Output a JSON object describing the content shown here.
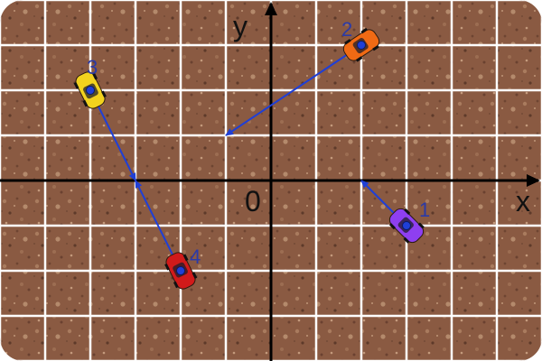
{
  "axes": {
    "x_label": "x",
    "y_label": "y",
    "origin_label": "0"
  },
  "grid": {
    "shown": true,
    "line_color": "#ffffff",
    "cell_units": 1,
    "x_range": [
      -6,
      6
    ],
    "y_range": [
      -4,
      4
    ]
  },
  "colors": {
    "ground": "#8a5a42",
    "axis": "#000000",
    "arrow": "#1f3fd6",
    "label": "#2a3aa8"
  },
  "cars": [
    {
      "label": "1",
      "color": "#8e3ff0",
      "position": [
        3,
        -1
      ],
      "arrow_to": [
        2,
        0
      ]
    },
    {
      "label": "2",
      "color": "#f06a14",
      "position": [
        2,
        3
      ],
      "arrow_to": [
        -1,
        1
      ]
    },
    {
      "label": "3",
      "color": "#f2d21e",
      "position": [
        -4,
        2
      ],
      "arrow_to": [
        -3,
        0
      ]
    },
    {
      "label": "4",
      "color": "#d11a1a",
      "position": [
        -2,
        -2
      ],
      "arrow_to": [
        -3,
        0
      ]
    }
  ]
}
